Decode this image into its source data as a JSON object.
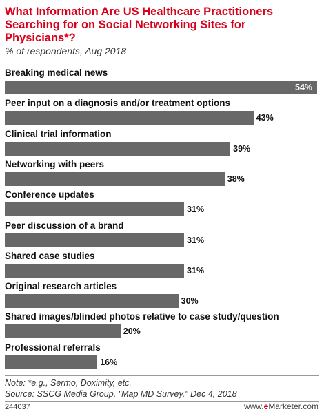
{
  "chart_data": {
    "type": "bar",
    "orientation": "horizontal",
    "title": "What Information Are US Healthcare Practitioners Searching for on Social Networking Sites for Physicians*?",
    "subtitle": "% of respondents, Aug 2018",
    "categories": [
      "Breaking medical news",
      "Peer input on a diagnosis and/or treatment options",
      "Clinical trial information",
      "Networking with peers",
      "Conference updates",
      "Peer discussion of a brand",
      "Shared case studies",
      "Original research articles",
      "Shared images/blinded photos relative to case study/question",
      "Professional referrals"
    ],
    "values": [
      54,
      43,
      39,
      38,
      31,
      31,
      31,
      30,
      20,
      16
    ],
    "value_labels": [
      "54%",
      "43%",
      "39%",
      "38%",
      "31%",
      "31%",
      "31%",
      "30%",
      "20%",
      "16%"
    ],
    "bar_color": "#686868",
    "title_color": "#d9001b"
  },
  "footer": {
    "note": "Note: *e.g., Sermo, Doximity, etc.",
    "source": "Source: SSCG Media Group, \"Map MD Survey,\" Dec 4, 2018",
    "chart_id": "244037",
    "brand_prefix": "www.",
    "brand_e": "e",
    "brand_suffix": "Marketer.com"
  }
}
